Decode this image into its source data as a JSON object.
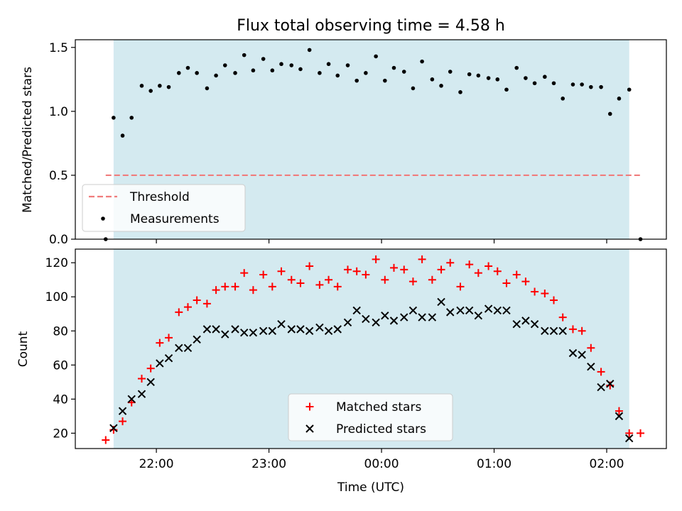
{
  "chart_data": [
    {
      "type": "scatter",
      "title": "Flux total observing time = 4.58 h",
      "ylabel": "Matched/Predicted stars",
      "xlabel": "",
      "ylim": [
        0,
        1.56
      ],
      "xlim_hours": [
        -2.72,
        2.53
      ],
      "yticks": [
        0.0,
        0.5,
        1.0,
        1.5
      ],
      "ytick_labels": [
        "0.0",
        "0.5",
        "1.0",
        "1.5"
      ],
      "shaded_span_hours": [
        -2.38,
        2.2
      ],
      "shade_color": "#d4eaf0",
      "threshold": {
        "name": "Threshold",
        "value": 0.5,
        "x_range_hours": [
          -2.45,
          2.3
        ],
        "color": "#f07c7c"
      },
      "legend": {
        "position": "lower-left",
        "entries": [
          "Threshold",
          "Measurements"
        ]
      },
      "series": [
        {
          "name": "Measurements",
          "color": "#000000",
          "x_hours": [
            -2.45,
            -2.38,
            -2.3,
            -2.22,
            -2.13,
            -2.05,
            -1.97,
            -1.89,
            -1.8,
            -1.72,
            -1.64,
            -1.55,
            -1.47,
            -1.39,
            -1.3,
            -1.22,
            -1.14,
            -1.05,
            -0.97,
            -0.89,
            -0.8,
            -0.72,
            -0.64,
            -0.55,
            -0.47,
            -0.39,
            -0.3,
            -0.22,
            -0.14,
            -0.05,
            0.03,
            0.11,
            0.2,
            0.28,
            0.36,
            0.45,
            0.53,
            0.61,
            0.7,
            0.78,
            0.86,
            0.95,
            1.03,
            1.11,
            1.2,
            1.28,
            1.36,
            1.45,
            1.53,
            1.61,
            1.7,
            1.78,
            1.86,
            1.95,
            2.03,
            2.11,
            2.2,
            2.3
          ],
          "values": [
            0.0,
            0.95,
            0.81,
            0.95,
            1.2,
            1.16,
            1.2,
            1.19,
            1.3,
            1.34,
            1.3,
            1.18,
            1.28,
            1.36,
            1.3,
            1.44,
            1.32,
            1.41,
            1.32,
            1.37,
            1.36,
            1.33,
            1.48,
            1.3,
            1.37,
            1.28,
            1.36,
            1.24,
            1.3,
            1.43,
            1.24,
            1.34,
            1.31,
            1.18,
            1.39,
            1.25,
            1.2,
            1.31,
            1.15,
            1.29,
            1.28,
            1.26,
            1.25,
            1.17,
            1.34,
            1.26,
            1.22,
            1.27,
            1.22,
            1.1,
            1.21,
            1.21,
            1.19,
            1.19,
            0.98,
            1.1,
            1.17,
            0.0
          ]
        }
      ]
    },
    {
      "type": "scatter",
      "title": "",
      "ylabel": "Count",
      "xlabel": "Time (UTC)",
      "ylim": [
        11,
        128
      ],
      "xlim_hours": [
        -2.72,
        2.53
      ],
      "yticks": [
        20,
        40,
        60,
        80,
        100,
        120
      ],
      "ytick_labels": [
        "20",
        "40",
        "60",
        "80",
        "100",
        "120"
      ],
      "xticks_hours": [
        -2,
        -1,
        0,
        1,
        2
      ],
      "xtick_labels": [
        "22:00",
        "23:00",
        "00:00",
        "01:00",
        "02:00"
      ],
      "shaded_span_hours": [
        -2.38,
        2.2
      ],
      "shade_color": "#d4eaf0",
      "legend": {
        "position": "lower-center",
        "entries": [
          "Matched stars",
          "Predicted stars"
        ]
      },
      "series": [
        {
          "name": "Matched stars",
          "marker": "plus",
          "color": "#ff0000",
          "x_hours": [
            -2.45,
            -2.38,
            -2.3,
            -2.22,
            -2.13,
            -2.05,
            -1.97,
            -1.89,
            -1.8,
            -1.72,
            -1.64,
            -1.55,
            -1.47,
            -1.39,
            -1.3,
            -1.22,
            -1.14,
            -1.05,
            -0.97,
            -0.89,
            -0.8,
            -0.72,
            -0.64,
            -0.55,
            -0.47,
            -0.39,
            -0.3,
            -0.22,
            -0.14,
            -0.05,
            0.03,
            0.11,
            0.2,
            0.28,
            0.36,
            0.45,
            0.53,
            0.61,
            0.7,
            0.78,
            0.86,
            0.95,
            1.03,
            1.11,
            1.2,
            1.28,
            1.36,
            1.45,
            1.53,
            1.61,
            1.7,
            1.78,
            1.86,
            1.95,
            2.03,
            2.11,
            2.2,
            2.3
          ],
          "values": [
            16,
            22,
            27,
            38,
            52,
            58,
            73,
            76,
            91,
            94,
            98,
            96,
            104,
            106,
            106,
            114,
            104,
            113,
            106,
            115,
            110,
            108,
            118,
            107,
            110,
            106,
            116,
            115,
            113,
            122,
            110,
            117,
            116,
            109,
            122,
            110,
            116,
            120,
            106,
            119,
            114,
            118,
            115,
            108,
            113,
            109,
            103,
            102,
            98,
            88,
            81,
            80,
            70,
            56,
            48,
            33,
            20,
            20
          ]
        },
        {
          "name": "Predicted stars",
          "marker": "x",
          "color": "#000000",
          "x_hours": [
            -2.38,
            -2.3,
            -2.22,
            -2.13,
            -2.05,
            -1.97,
            -1.89,
            -1.8,
            -1.72,
            -1.64,
            -1.55,
            -1.47,
            -1.39,
            -1.3,
            -1.22,
            -1.14,
            -1.05,
            -0.97,
            -0.89,
            -0.8,
            -0.72,
            -0.64,
            -0.55,
            -0.47,
            -0.39,
            -0.3,
            -0.22,
            -0.14,
            -0.05,
            0.03,
            0.11,
            0.2,
            0.28,
            0.36,
            0.45,
            0.53,
            0.61,
            0.7,
            0.78,
            0.86,
            0.95,
            1.03,
            1.11,
            1.2,
            1.28,
            1.36,
            1.45,
            1.53,
            1.61,
            1.7,
            1.78,
            1.86,
            1.95,
            2.03,
            2.11,
            2.2
          ],
          "values": [
            23,
            33,
            40,
            43,
            50,
            61,
            64,
            70,
            70,
            75,
            81,
            81,
            78,
            81,
            79,
            79,
            80,
            80,
            84,
            81,
            81,
            80,
            82,
            80,
            81,
            85,
            92,
            87,
            85,
            89,
            86,
            88,
            92,
            88,
            88,
            97,
            91,
            92,
            92,
            89,
            93,
            92,
            92,
            84,
            86,
            84,
            80,
            80,
            80,
            67,
            66,
            59,
            47,
            49,
            30,
            17
          ]
        }
      ]
    }
  ]
}
